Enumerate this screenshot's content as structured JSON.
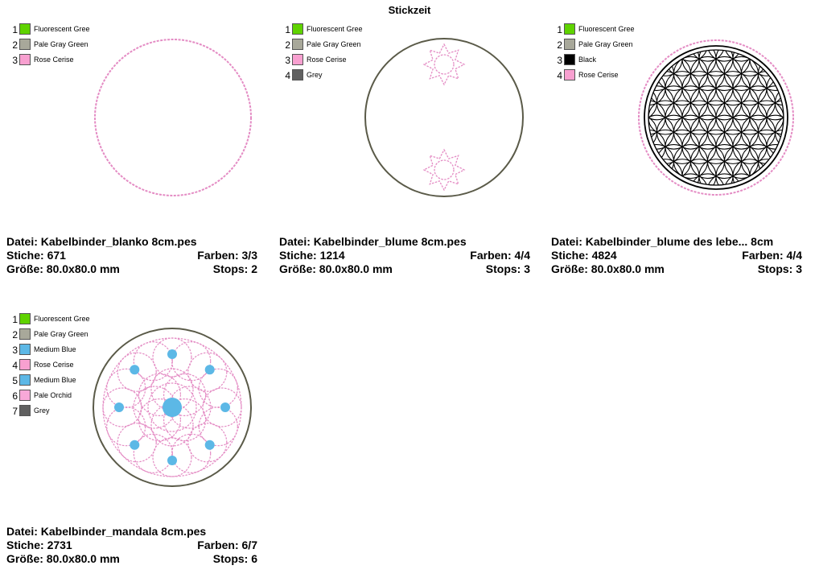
{
  "title": "Stickzeit",
  "designs": [
    {
      "file": "Datei: Kabelbinder_blanko 8cm.pes",
      "stitches": "Stiche: 671",
      "colors_count": "Farben: 3/3",
      "size": "Größe: 80.0x80.0 mm",
      "stops": "Stops: 2",
      "colors": [
        {
          "num": "1",
          "name": "Fluorescent Gree",
          "hex": "#5FD300"
        },
        {
          "num": "2",
          "name": "Pale Gray Green",
          "hex": "#A8A89A"
        },
        {
          "num": "3",
          "name": "Rose Cerise",
          "hex": "#F8A0D0"
        }
      ]
    },
    {
      "file": "Datei: Kabelbinder_blume 8cm.pes",
      "stitches": "Stiche: 1214",
      "colors_count": "Farben: 4/4",
      "size": "Größe: 80.0x80.0 mm",
      "stops": "Stops: 3",
      "colors": [
        {
          "num": "1",
          "name": "Fluorescent Gree",
          "hex": "#5FD300"
        },
        {
          "num": "2",
          "name": "Pale Gray Green",
          "hex": "#A8A89A"
        },
        {
          "num": "3",
          "name": "Rose Cerise",
          "hex": "#F8A0D0"
        },
        {
          "num": "4",
          "name": "Grey",
          "hex": "#606060"
        }
      ]
    },
    {
      "file": "Datei: Kabelbinder_blume des lebe... 8cm",
      "stitches": "Stiche: 4824",
      "colors_count": "Farben: 4/4",
      "size": "Größe: 80.0x80.0 mm",
      "stops": "Stops: 3",
      "colors": [
        {
          "num": "1",
          "name": "Fluorescent Gree",
          "hex": "#5FD300"
        },
        {
          "num": "2",
          "name": "Pale Gray Green",
          "hex": "#A8A89A"
        },
        {
          "num": "3",
          "name": "Black",
          "hex": "#000000"
        },
        {
          "num": "4",
          "name": "Rose Cerise",
          "hex": "#F8A0D0"
        }
      ]
    },
    {
      "file": "Datei: Kabelbinder_mandala 8cm.pes",
      "stitches": "Stiche: 2731",
      "colors_count": "Farben: 6/7",
      "size": "Größe: 80.0x80.0 mm",
      "stops": "Stops: 6",
      "colors": [
        {
          "num": "1",
          "name": "Fluorescent Gree",
          "hex": "#5FD300"
        },
        {
          "num": "2",
          "name": "Pale Gray Green",
          "hex": "#A8A89A"
        },
        {
          "num": "3",
          "name": "Medium Blue",
          "hex": "#5CB8E6"
        },
        {
          "num": "4",
          "name": "Rose Cerise",
          "hex": "#F8A0D0"
        },
        {
          "num": "5",
          "name": "Medium Blue",
          "hex": "#5CB8E6"
        },
        {
          "num": "6",
          "name": "Pale Orchid",
          "hex": "#F8A8D8"
        },
        {
          "num": "7",
          "name": "Grey",
          "hex": "#606060"
        }
      ]
    }
  ]
}
